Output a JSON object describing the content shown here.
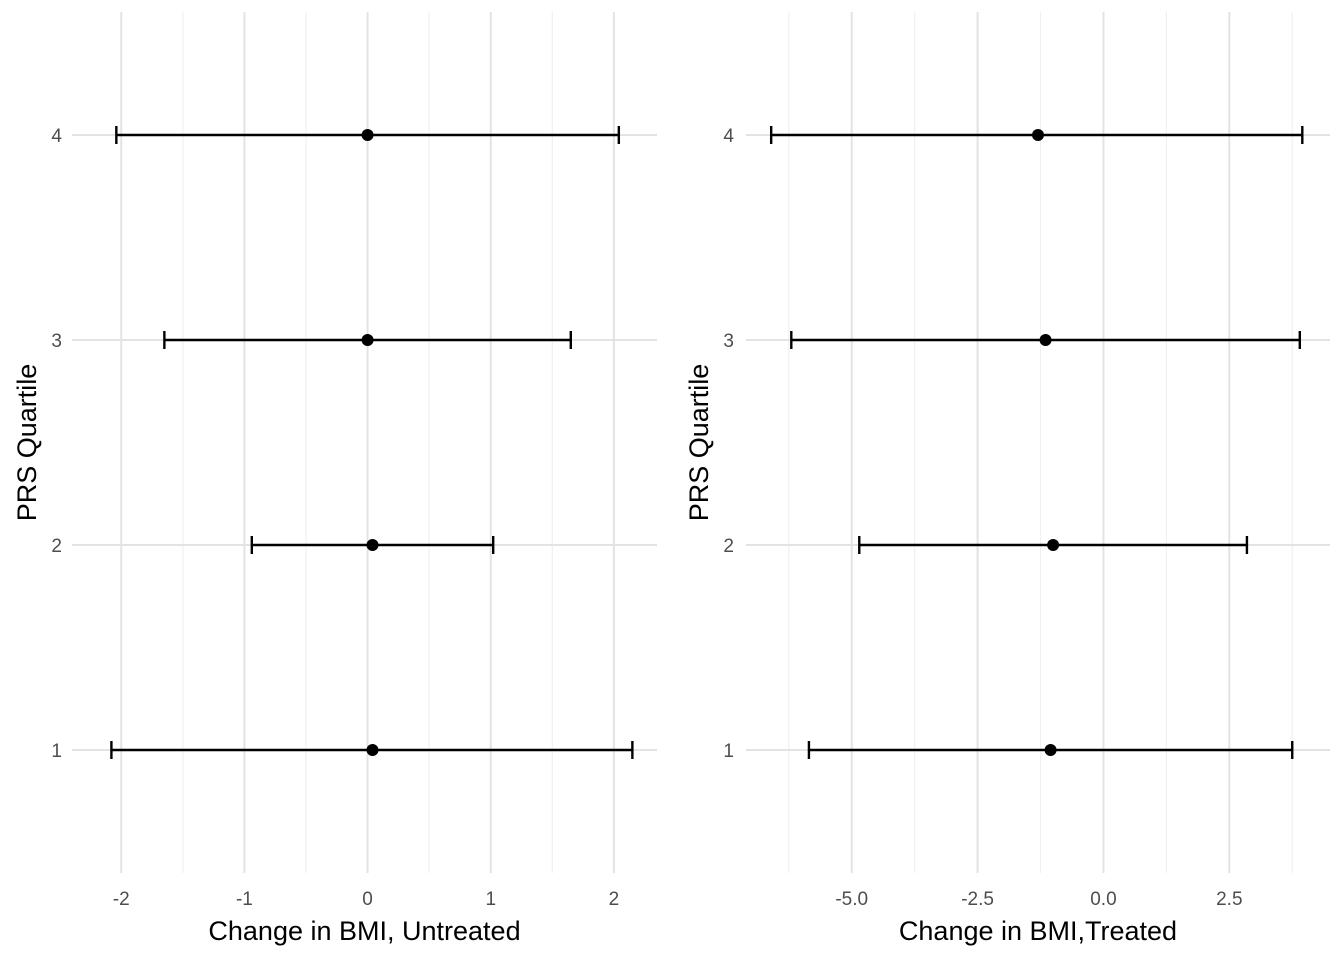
{
  "chart_data": [
    {
      "type": "errorbar",
      "xlabel": "Change in BMI, Untreated",
      "ylabel": "PRS Quartile",
      "categories": [
        "1",
        "2",
        "3",
        "4"
      ],
      "points": [
        {
          "quartile": 1,
          "estimate": 0.04,
          "lower": -2.08,
          "upper": 2.15
        },
        {
          "quartile": 2,
          "estimate": 0.04,
          "lower": -0.94,
          "upper": 1.02
        },
        {
          "quartile": 3,
          "estimate": 0.0,
          "lower": -1.65,
          "upper": 1.65
        },
        {
          "quartile": 4,
          "estimate": 0.0,
          "lower": -2.04,
          "upper": 2.04
        }
      ],
      "xticks": [
        "-2",
        "-1",
        "0",
        "1",
        "2"
      ],
      "xtick_values": [
        -2,
        -1,
        0,
        1,
        2
      ],
      "xlim": [
        -2.4,
        2.35
      ],
      "ylim": [
        0.4,
        4.6
      ],
      "grid": true
    },
    {
      "type": "errorbar",
      "xlabel": "Change in BMI,Treated",
      "ylabel": "PRS Quartile",
      "categories": [
        "1",
        "2",
        "3",
        "4"
      ],
      "points": [
        {
          "quartile": 1,
          "estimate": -1.05,
          "lower": -5.85,
          "upper": 3.75
        },
        {
          "quartile": 2,
          "estimate": -1.0,
          "lower": -4.85,
          "upper": 2.85
        },
        {
          "quartile": 3,
          "estimate": -1.15,
          "lower": -6.2,
          "upper": 3.9
        },
        {
          "quartile": 4,
          "estimate": -1.3,
          "lower": -6.6,
          "upper": 3.95
        }
      ],
      "xticks": [
        "-5.0",
        "-2.5",
        "0.0",
        "2.5"
      ],
      "xtick_values": [
        -5,
        -2.5,
        0,
        2.5
      ],
      "xlim": [
        -7.1,
        4.5
      ],
      "ylim": [
        0.4,
        4.6
      ],
      "grid": true
    }
  ]
}
